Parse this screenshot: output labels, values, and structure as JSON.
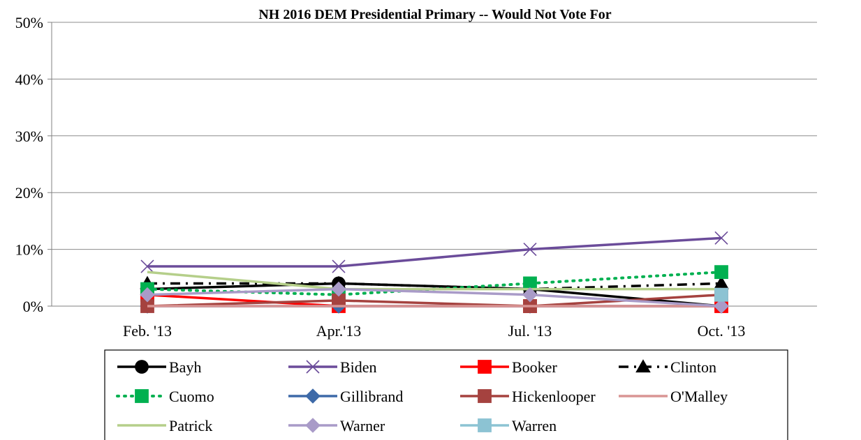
{
  "chart_data": {
    "type": "line",
    "title": "NH 2016 DEM Presidential Primary -- Would Not Vote For",
    "categories": [
      "Feb. '13",
      "Apr.'13",
      "Jul. '13",
      "Oct. '13"
    ],
    "ylim": [
      0,
      50
    ],
    "yticks": [
      0,
      10,
      20,
      30,
      40,
      50
    ],
    "ytick_labels": [
      "0%",
      "10%",
      "20%",
      "30%",
      "40%",
      "50%"
    ],
    "grid": true,
    "legend_position": "bottom",
    "series": [
      {
        "name": "Bayh",
        "values": [
          3,
          4,
          3,
          0
        ],
        "color": "#000000",
        "marker": "circle",
        "dash": "solid"
      },
      {
        "name": "Biden",
        "values": [
          7,
          7,
          10,
          12
        ],
        "color": "#6b4c9a",
        "marker": "x",
        "dash": "solid"
      },
      {
        "name": "Booker",
        "values": [
          2,
          0,
          0,
          0
        ],
        "color": "#ff0000",
        "marker": "square",
        "dash": "solid"
      },
      {
        "name": "Clinton",
        "values": [
          4,
          4,
          3,
          4
        ],
        "color": "#000000",
        "marker": "triangle",
        "dash": "dashdot"
      },
      {
        "name": "Cuomo",
        "values": [
          3,
          2,
          4,
          6
        ],
        "color": "#00b050",
        "marker": "square",
        "dash": "dot"
      },
      {
        "name": "Gillibrand",
        "values": [
          0,
          0,
          0,
          0
        ],
        "color": "#3e6aa8",
        "marker": "diamond",
        "dash": "solid"
      },
      {
        "name": "Hickenlooper",
        "values": [
          0,
          1,
          0,
          2
        ],
        "color": "#a5423f",
        "marker": "square",
        "dash": "solid"
      },
      {
        "name": "O'Malley",
        "values": [
          0,
          0,
          0,
          0
        ],
        "color": "#d99594",
        "marker": "none",
        "dash": "solid"
      },
      {
        "name": "Patrick",
        "values": [
          6,
          3,
          3,
          3
        ],
        "color": "#b5cf8a",
        "marker": "none",
        "dash": "solid"
      },
      {
        "name": "Warner",
        "values": [
          2,
          3,
          2,
          0
        ],
        "color": "#a99bc8",
        "marker": "diamond",
        "dash": "solid"
      },
      {
        "name": "Warren",
        "values": [
          null,
          null,
          null,
          2
        ],
        "color": "#8cc3d3",
        "marker": "square",
        "dash": "solid"
      }
    ]
  }
}
